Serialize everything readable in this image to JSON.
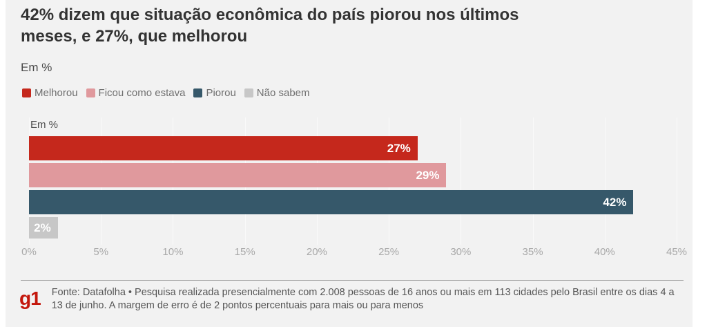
{
  "page": {
    "background": "#ffffff",
    "card_background": "#f2f2f2"
  },
  "header": {
    "title": "42% dizem que situação econômica do país piorou nos últimos meses, e 27%, que melhorou",
    "subtitle": "Em %"
  },
  "legend": {
    "items": [
      {
        "label": "Melhorou",
        "color": "#c5281c"
      },
      {
        "label": "Ficou como estava",
        "color": "#e0999d"
      },
      {
        "label": "Piorou",
        "color": "#36586a"
      },
      {
        "label": "Não sabem",
        "color": "#c7c7c7"
      }
    ]
  },
  "chart_data": {
    "type": "bar",
    "orientation": "horizontal",
    "title": "42% dizem que situação econômica do país piorou nos últimos meses, e 27%, que melhorou",
    "unit_label": "Em %",
    "categories": [
      "Melhorou",
      "Ficou como estava",
      "Piorou",
      "Não sabem"
    ],
    "values": [
      27,
      29,
      42,
      2
    ],
    "value_labels": [
      "27%",
      "29%",
      "42%",
      "2%"
    ],
    "colors": [
      "#c5281c",
      "#e0999d",
      "#36586a",
      "#c7c7c7"
    ],
    "xlim": [
      0,
      45
    ],
    "x_tick_values": [
      0,
      5,
      10,
      15,
      20,
      25,
      30,
      35,
      40,
      45
    ],
    "x_tick_labels": [
      "0%",
      "5%",
      "10%",
      "15%",
      "20%",
      "25%",
      "30%",
      "35%",
      "40%",
      "45%"
    ],
    "grid": true,
    "legend_position": "top"
  },
  "footer": {
    "logo": "g1",
    "logo_color": "#c4170c",
    "source_text": "Fonte: Datafolha • Pesquisa realizada presencialmente com 2.008 pessoas de 16 anos ou mais em 113 cidades pelo Brasil entre os dias 4 a 13 de junho. A margem de erro é de 2 pontos percentuais para mais ou para menos"
  }
}
